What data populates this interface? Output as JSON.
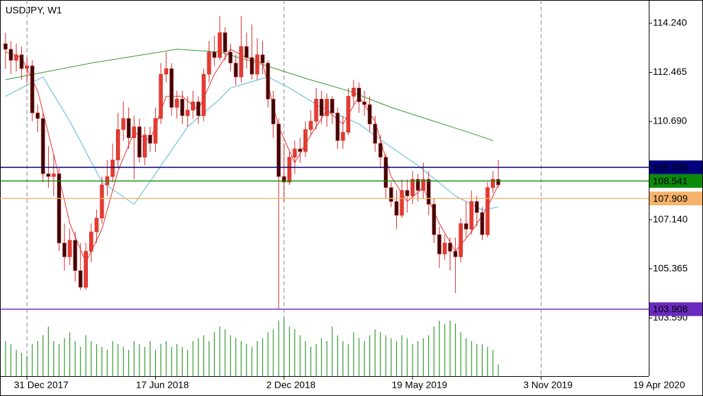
{
  "chart_data": {
    "type": "candlestick",
    "title": "USDJPY, W1",
    "xlim": [
      -1.03,
      120.1
    ],
    "ylim": [
      101.49,
      115.08
    ],
    "yticks": [
      {
        "value": 114.24,
        "label": "114.240"
      },
      112.465,
      {
        "value": 110.69,
        "label": "110.690"
      },
      {
        "value": 107.14,
        "label": "107.140"
      },
      105.365,
      {
        "value": 103.59,
        "label": "103.590"
      }
    ],
    "xticks": [
      {
        "value": 4,
        "label": "31 Dec 2017"
      },
      {
        "value": 28,
        "label": "17 Jun 2018"
      },
      {
        "value": 52,
        "label": "2 Dec 2018"
      },
      {
        "value": 76,
        "label": "19 May 2019"
      },
      {
        "value": 100,
        "label": "3 Nov 2019"
      },
      {
        "value": 124,
        "label": "19 Apr 2020"
      }
    ],
    "up_color": "#e53b2f",
    "down_color": "#3a0808",
    "wick_color": "#d42a2a",
    "open": [
      113.5,
      113.3,
      112.9,
      113.1,
      112.6,
      112.7,
      111.0,
      110.8,
      108.8,
      108.7,
      108.8,
      106.3,
      105.8,
      106.4,
      105.3,
      104.7,
      106.0,
      106.7,
      107.2,
      108.4,
      108.7,
      109.3,
      110.4,
      110.8,
      110.1,
      110.5,
      109.4,
      110.2,
      109.9,
      110.8,
      112.4,
      112.6,
      111.2,
      111.5,
      110.9,
      111.1,
      111.4,
      110.9,
      112.4,
      113.2,
      113.0,
      113.9,
      113.2,
      112.8,
      112.3,
      113.4,
      113.0,
      112.4,
      113.1,
      112.8,
      111.5,
      110.6,
      108.7,
      108.5,
      109.4,
      109.7,
      109.6,
      110.4,
      110.7,
      111.5,
      110.9,
      111.5,
      111.0,
      110.0,
      110.3,
      111.6,
      111.9,
      111.4,
      111.3,
      110.6,
      109.9,
      109.4,
      108.3,
      107.8,
      107.3,
      108.2,
      108.0,
      108.6,
      108.2,
      108.6,
      107.7,
      106.6,
      105.9,
      106.3,
      106.0,
      105.8,
      107.0,
      106.8,
      107.8,
      107.4,
      106.6,
      108.3,
      108.6
    ],
    "high": [
      113.9,
      113.6,
      113.5,
      113.4,
      113.0,
      112.9,
      111.3,
      111.0,
      109.8,
      109.5,
      109.0,
      107.0,
      106.8,
      106.7,
      106.3,
      106.3,
      107.0,
      107.5,
      108.7,
      109.3,
      109.9,
      111.0,
      111.4,
      111.2,
      110.9,
      110.8,
      110.5,
      110.5,
      111.2,
      112.8,
      113.2,
      112.8,
      111.8,
      111.8,
      111.6,
      111.8,
      111.6,
      112.6,
      113.6,
      113.8,
      114.5,
      114.1,
      113.5,
      113.1,
      114.5,
      113.9,
      114.2,
      113.7,
      113.6,
      112.9,
      111.8,
      110.8,
      109.9,
      109.6,
      110.0,
      110.1,
      110.7,
      111.1,
      111.9,
      111.8,
      111.7,
      111.6,
      111.2,
      110.9,
      111.9,
      112.2,
      112.1,
      111.8,
      111.6,
      110.9,
      110.2,
      109.5,
      108.5,
      108.2,
      108.6,
      108.6,
      108.9,
      108.8,
      109.2,
      108.9,
      107.9,
      106.9,
      106.6,
      106.5,
      106.5,
      107.2,
      107.8,
      108.2,
      108.0,
      107.6,
      108.5,
      108.9,
      109.3
    ],
    "low": [
      112.6,
      112.4,
      112.5,
      112.2,
      112.1,
      110.7,
      110.3,
      108.5,
      108.3,
      108.0,
      106.0,
      105.3,
      105.5,
      104.9,
      104.6,
      104.6,
      105.6,
      106.3,
      107.0,
      108.0,
      108.5,
      109.0,
      110.0,
      109.7,
      108.6,
      109.2,
      109.1,
      109.6,
      109.6,
      110.6,
      112.1,
      110.9,
      110.8,
      110.6,
      110.5,
      110.8,
      110.6,
      110.7,
      112.1,
      112.7,
      112.9,
      112.9,
      112.5,
      112.0,
      112.1,
      112.6,
      112.2,
      112.2,
      112.4,
      111.2,
      110.1,
      103.9,
      107.8,
      108.4,
      108.8,
      109.2,
      109.4,
      110.2,
      110.4,
      110.6,
      110.5,
      110.6,
      109.7,
      109.7,
      110.2,
      111.3,
      111.0,
      110.9,
      110.3,
      109.6,
      109.0,
      107.9,
      107.6,
      106.8,
      107.2,
      107.4,
      107.7,
      107.8,
      107.9,
      107.3,
      106.3,
      105.4,
      105.7,
      105.3,
      104.5,
      105.6,
      106.5,
      106.6,
      106.9,
      106.4,
      106.5,
      108.1,
      108.3
    ],
    "close": [
      113.3,
      112.9,
      113.1,
      112.6,
      112.7,
      111.0,
      110.8,
      108.8,
      108.7,
      108.8,
      106.3,
      105.8,
      106.4,
      105.3,
      104.7,
      106.0,
      106.7,
      107.2,
      108.4,
      108.7,
      109.3,
      110.4,
      110.8,
      110.1,
      110.5,
      109.4,
      110.2,
      109.9,
      110.8,
      112.4,
      112.6,
      111.2,
      111.5,
      110.9,
      111.1,
      111.4,
      110.9,
      112.4,
      113.2,
      113.0,
      113.9,
      113.2,
      112.8,
      112.3,
      113.4,
      113.0,
      112.4,
      113.1,
      112.8,
      111.5,
      110.6,
      108.7,
      108.5,
      109.4,
      109.7,
      109.6,
      110.4,
      110.7,
      111.5,
      110.9,
      111.5,
      111.0,
      110.0,
      110.3,
      111.6,
      111.9,
      111.4,
      111.3,
      110.6,
      109.9,
      109.4,
      108.3,
      107.8,
      107.3,
      108.2,
      108.0,
      108.6,
      108.2,
      108.6,
      107.7,
      106.6,
      105.9,
      106.3,
      106.0,
      105.8,
      107.0,
      106.8,
      107.8,
      107.4,
      106.6,
      108.3,
      108.6,
      108.4
    ],
    "volume_lim": [
      0,
      100
    ],
    "volume_color": "#2f9a2f",
    "volume": [
      60,
      55,
      45,
      40,
      35,
      55,
      60,
      70,
      85,
      60,
      55,
      65,
      75,
      60,
      50,
      70,
      60,
      55,
      50,
      45,
      60,
      55,
      50,
      45,
      60,
      55,
      50,
      60,
      45,
      55,
      60,
      50,
      55,
      50,
      45,
      60,
      65,
      70,
      60,
      75,
      85,
      80,
      70,
      65,
      60,
      55,
      50,
      60,
      65,
      75,
      80,
      95,
      100,
      85,
      80,
      70,
      60,
      50,
      55,
      65,
      60,
      85,
      70,
      60,
      55,
      75,
      65,
      60,
      70,
      80,
      75,
      70,
      65,
      60,
      70,
      65,
      55,
      60,
      65,
      70,
      85,
      95,
      90,
      95,
      90,
      75,
      65,
      60,
      55,
      55,
      50,
      45,
      20
    ],
    "lines": [
      {
        "color": "#2e9a2e",
        "x": [
          0,
          8,
          16,
          24,
          32,
          40,
          48,
          56,
          64,
          72,
          80,
          88,
          91
        ],
        "values": [
          112.2,
          112.5,
          112.8,
          113.05,
          113.3,
          113.2,
          112.75,
          112.25,
          111.8,
          111.2,
          110.7,
          110.2,
          110.0
        ]
      },
      {
        "color": "#55b4dc",
        "x": [
          0,
          7,
          12,
          18,
          24,
          28,
          34,
          40,
          42,
          49,
          53,
          59,
          66,
          71,
          77,
          84,
          89,
          92
        ],
        "values": [
          111.6,
          112.3,
          110.7,
          108.5,
          107.7,
          108.8,
          110.5,
          111.5,
          111.9,
          112.3,
          111.9,
          111.2,
          110.6,
          109.9,
          109.1,
          108.0,
          107.5,
          107.6
        ]
      },
      {
        "color": "#e83030",
        "x": [
          0,
          3,
          6,
          9,
          12,
          15,
          18,
          21,
          24,
          27,
          30,
          33,
          36,
          39,
          42,
          45,
          48,
          51,
          54,
          57,
          60,
          63,
          66,
          69,
          72,
          75,
          78,
          81,
          84,
          87,
          90,
          92
        ],
        "values": [
          113.2,
          113.0,
          111.8,
          109.5,
          107.0,
          105.6,
          106.8,
          108.9,
          110.3,
          110.0,
          111.6,
          111.6,
          111.1,
          112.4,
          113.3,
          113.0,
          112.8,
          110.5,
          109.2,
          110.2,
          111.1,
          110.6,
          111.6,
          110.7,
          108.7,
          107.8,
          108.3,
          107.0,
          106.0,
          106.7,
          107.6,
          108.4
        ]
      }
    ],
    "levels": [
      {
        "value": 109.035,
        "color": "#00007a"
      },
      {
        "value": 108.541,
        "color": "#0c8a0c"
      },
      {
        "value": 107.909,
        "color": "#f5b26a"
      },
      {
        "value": 103.908,
        "color": "#6b2bbf"
      }
    ]
  }
}
